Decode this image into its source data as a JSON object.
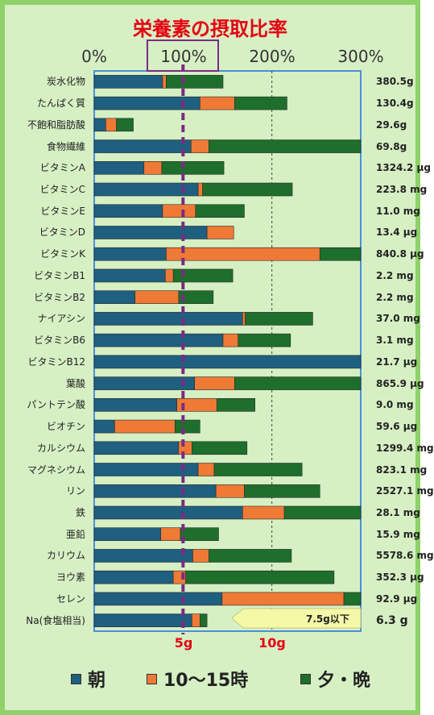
{
  "title": "栄養素の摂取比率",
  "x_ticks": [
    "0%",
    "100%",
    "200%",
    "300%"
  ],
  "salt_ticks": [
    "5g",
    "10g"
  ],
  "salt_limit": "7.5g以下",
  "legend": [
    {
      "name": "朝",
      "color": "#1f5f7f"
    },
    {
      "name": "10～15時",
      "color": "#ef7a36"
    },
    {
      "name": "夕・晩",
      "color": "#1e6e2c"
    }
  ],
  "colors": {
    "morning": "#1f5f7f",
    "midday": "#ef7a36",
    "evening": "#1e6e2c",
    "reference_line": "#7a2b83",
    "frame": "#8fd26a",
    "background": "#d6f0c4",
    "title": "#e60012"
  },
  "chart_data": {
    "type": "bar",
    "orientation": "horizontal",
    "stacked": true,
    "title": "栄養素の摂取比率",
    "xlim": [
      0,
      300
    ],
    "x_ticks": [
      0,
      100,
      200,
      300
    ],
    "x_tick_labels": [
      "0%",
      "100%",
      "200%",
      "300%"
    ],
    "reference_line": 100,
    "grid": true,
    "legend_position": "bottom",
    "categories": [
      "炭水化物",
      "たんぱく質",
      "不飽和脂肪酸",
      "食物繊維",
      "ビタミンA",
      "ビタミンC",
      "ビタミンE",
      "ビタミンD",
      "ビタミンK",
      "ビタミンB1",
      "ビタミンB2",
      "ナイアシン",
      "ビタミンB6",
      "ビタミンB12",
      "葉酸",
      "パントテン酸",
      "ビオチン",
      "カルシウム",
      "マグネシウム",
      "リン",
      "鉄",
      "亜鉛",
      "カリウム",
      "ヨウ素",
      "セレン",
      "Na(食塩相当)"
    ],
    "totals": [
      "380.5g",
      "130.4g",
      "29.6g",
      "69.8g",
      "1324.2 μg",
      "223.8 mg",
      "11.0 mg",
      "13.4 μg",
      "840.8 μg",
      "2.2 mg",
      "2.2 mg",
      "37.0 mg",
      "3.1 mg",
      "21.7 μg",
      "865.9 μg",
      "9.0 mg",
      "59.6 μg",
      "1299.4 mg",
      "823.1 mg",
      "2527.1 mg",
      "28.1 mg",
      "15.9 mg",
      "5578.6 mg",
      "352.3 μg",
      "92.9 μg",
      "6.3 g"
    ],
    "series": [
      {
        "name": "朝",
        "values": [
          77,
          119,
          13,
          109,
          56,
          117,
          77,
          127,
          81,
          80,
          46,
          167,
          145,
          300,
          113,
          93,
          23,
          95,
          117,
          137,
          167,
          75,
          111,
          89,
          144,
          110
        ]
      },
      {
        "name": "10～15時",
        "values": [
          4,
          39,
          12,
          20,
          20,
          5,
          37,
          30,
          173,
          9,
          49,
          3,
          17,
          0,
          45,
          45,
          68,
          15,
          18,
          32,
          47,
          22,
          18,
          14,
          137,
          9
        ]
      },
      {
        "name": "夕・晩",
        "values": [
          64,
          59,
          19,
          171,
          70,
          101,
          55,
          0,
          46,
          67,
          39,
          76,
          59,
          0,
          142,
          43,
          28,
          62,
          99,
          85,
          86,
          43,
          93,
          167,
          19,
          8
        ]
      }
    ],
    "salt_scale": {
      "ticks": [
        "5g",
        "10g"
      ],
      "limit": "7.5g以下"
    }
  }
}
